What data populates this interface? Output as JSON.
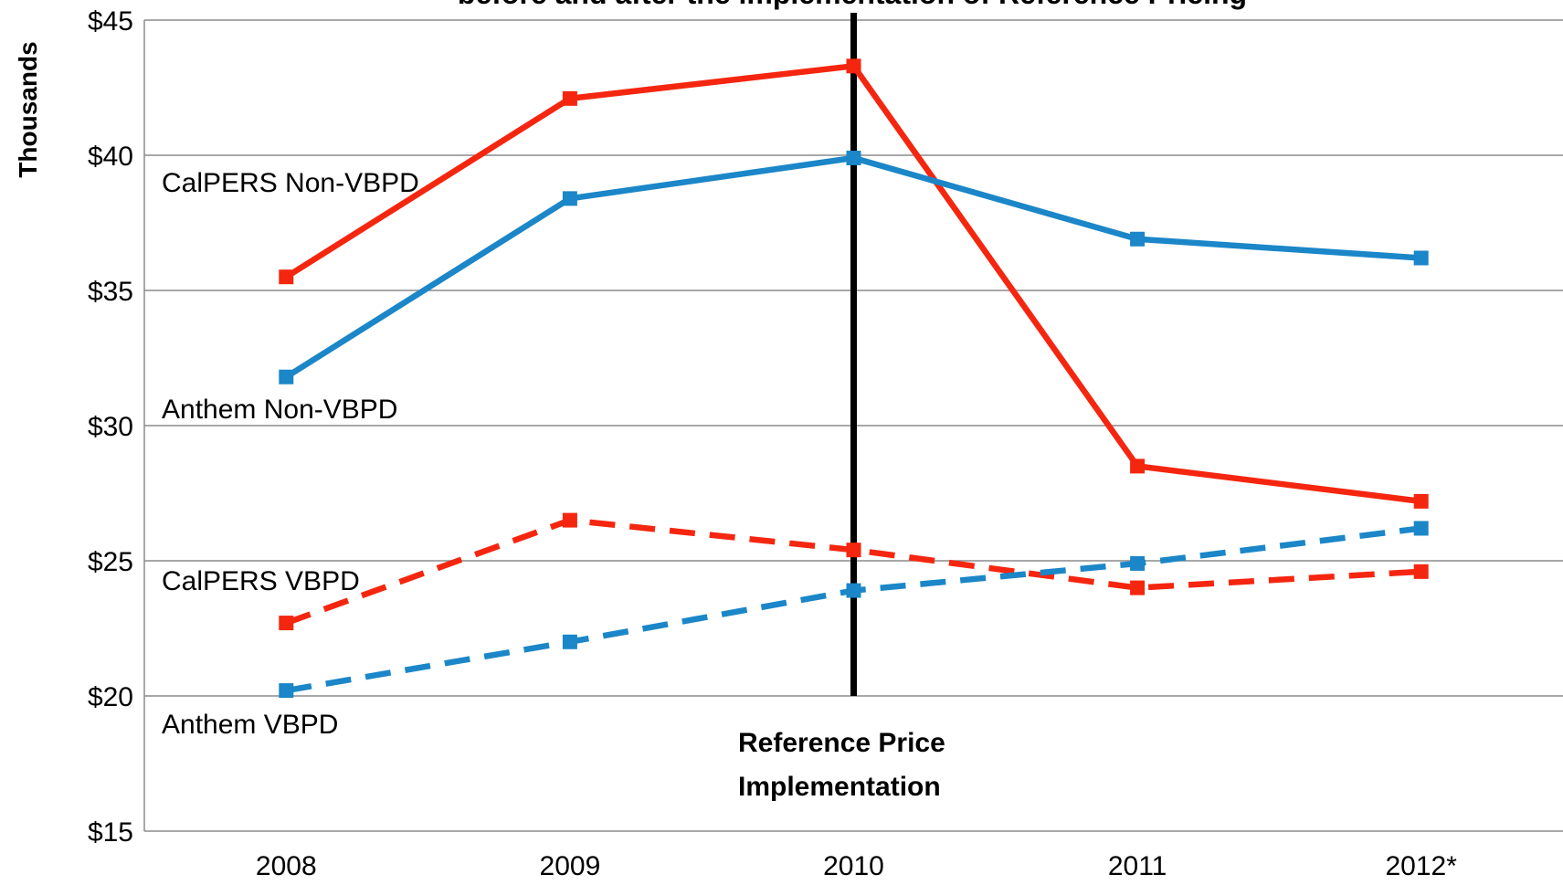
{
  "chart_data": {
    "type": "line",
    "title": "before and after the implementation of Reference Pricing",
    "y_label": "Thousands",
    "categories": [
      "2008",
      "2009",
      "2010",
      "2011",
      "2012*"
    ],
    "series": [
      {
        "name": "CalPERS Non-VBPD",
        "color": "#f5260f",
        "dashed": false,
        "values": [
          35.5,
          42.1,
          43.3,
          28.5,
          27.2
        ]
      },
      {
        "name": "Anthem Non-VBPD",
        "color": "#1b86c8",
        "dashed": false,
        "values": [
          31.8,
          38.4,
          39.9,
          36.9,
          36.2
        ]
      },
      {
        "name": "CalPERS VBPD",
        "color": "#f5260f",
        "dashed": true,
        "values": [
          22.7,
          26.5,
          25.4,
          24.0,
          24.6
        ]
      },
      {
        "name": "Anthem VBPD",
        "color": "#1b86c8",
        "dashed": true,
        "values": [
          20.2,
          22.0,
          23.9,
          24.9,
          26.2
        ]
      }
    ],
    "ylim": [
      15,
      45
    ],
    "yticks": [
      {
        "value": 15,
        "label": "$15"
      },
      {
        "value": 20,
        "label": "$20"
      },
      {
        "value": 25,
        "label": "$25"
      },
      {
        "value": 30,
        "label": "$30"
      },
      {
        "value": 35,
        "label": "$35"
      },
      {
        "value": 40,
        "label": "$40"
      },
      {
        "value": 45,
        "label": "$45"
      }
    ],
    "grid": true,
    "reference_category": "2010",
    "annotation": [
      "Reference Price",
      "Implementation"
    ]
  }
}
